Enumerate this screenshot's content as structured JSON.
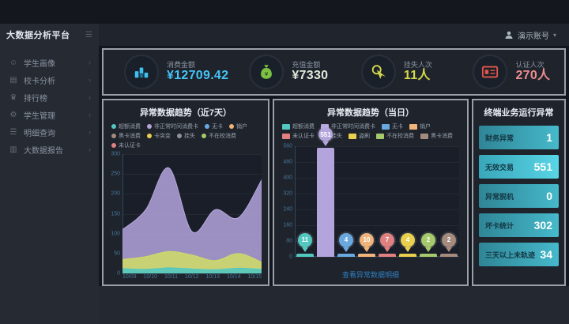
{
  "header": {
    "app_title": "大数据分析平台",
    "collapse_glyph": "☰",
    "user_name": "演示账号",
    "user_caret": "▾"
  },
  "sidebar": {
    "chevron": "›",
    "items": [
      {
        "label": "学生画像",
        "icon": "student-portrait-icon",
        "glyph": "☺"
      },
      {
        "label": "校卡分析",
        "icon": "card-analysis-icon",
        "glyph": "▤"
      },
      {
        "label": "排行榜",
        "icon": "ranking-icon",
        "glyph": "♛"
      },
      {
        "label": "学生管理",
        "icon": "student-management-icon",
        "glyph": "⚙"
      },
      {
        "label": "明细查询",
        "icon": "detail-query-icon",
        "glyph": "☰"
      },
      {
        "label": "大数据报告",
        "icon": "bigdata-report-icon",
        "glyph": "▥"
      }
    ]
  },
  "kpi_cards": [
    {
      "label": "消费金额",
      "value": "¥12709.42",
      "value_color": "#45c4f5",
      "icon": "coins-icon",
      "icon_color": "#3fc1f0"
    },
    {
      "label": "充值金额",
      "value": "¥7330",
      "value_color": "#dfe9d8",
      "icon": "money-bag-icon",
      "icon_color": "#7cc242"
    },
    {
      "label": "挂失人次",
      "value": "11人",
      "value_color": "#d3d94a",
      "icon": "hand-click-icon",
      "icon_color": "#d3d94a"
    },
    {
      "label": "认证人次",
      "value": "270人",
      "value_color": "#ee8d90",
      "icon": "id-card-icon",
      "icon_color": "#e2574c"
    }
  ],
  "chart_data": [
    {
      "type": "area",
      "title": "异常数据趋势（近7天）",
      "x": [
        "10/09",
        "10/10",
        "10/11",
        "10/12",
        "10/13",
        "10/14",
        "10/15"
      ],
      "ylim": [
        0,
        300
      ],
      "yticks": [
        0,
        50,
        100,
        150,
        200,
        250,
        300
      ],
      "grid": true,
      "legend_position": "top",
      "legend": [
        {
          "label": "超额消费",
          "color": "#53c8c0"
        },
        {
          "label": "非正常时间消费卡",
          "color": "#b3a5dc"
        },
        {
          "label": "无卡",
          "color": "#6aa9e0"
        },
        {
          "label": "销户",
          "color": "#f0b37a"
        },
        {
          "label": "黑卡消费",
          "color": "#a58a7e"
        },
        {
          "label": "卡突变",
          "color": "#e8cf4e"
        },
        {
          "label": "挂失",
          "color": "#8d9399"
        },
        {
          "label": "不在校消费",
          "color": "#a5c96b"
        },
        {
          "label": "未认证卡",
          "color": "#e08080"
        }
      ],
      "series": [
        {
          "name": "非正常时间消费卡",
          "color": "#b3a5dc",
          "values": [
            110,
            160,
            265,
            105,
            160,
            140,
            235
          ]
        },
        {
          "name": "不在校消费",
          "color": "#cdd86b",
          "values": [
            35,
            42,
            55,
            46,
            32,
            50,
            28
          ]
        },
        {
          "name": "超额消费",
          "color": "#53c8c0",
          "values": [
            12,
            10,
            14,
            11,
            9,
            13,
            10
          ]
        }
      ]
    },
    {
      "type": "bar",
      "title": "异常数据趋势（当日）",
      "ylim": [
        0,
        560
      ],
      "yticks": [
        0,
        80,
        160,
        240,
        320,
        400,
        480,
        560
      ],
      "legend": [
        {
          "label": "超额消费",
          "color": "#53c8c0"
        },
        {
          "label": "非正常时间消费卡",
          "color": "#b3a5dc"
        },
        {
          "label": "无卡",
          "color": "#6aa9e0"
        },
        {
          "label": "销户",
          "color": "#f0b37a"
        },
        {
          "label": "未认证卡",
          "color": "#e08080"
        },
        {
          "label": "挂失",
          "color": "#8d9399"
        },
        {
          "label": "盗刷",
          "color": "#e8cf4e"
        },
        {
          "label": "不在校消费",
          "color": "#a5c96b"
        },
        {
          "label": "黑卡消费",
          "color": "#a58a7e"
        }
      ],
      "categories": [
        "超额消费",
        "非正常时间消费卡",
        "无卡",
        "销户",
        "未认证卡",
        "盗刷",
        "不在校消费",
        "黑卡消费"
      ],
      "values": [
        11,
        551,
        4,
        10,
        7,
        4,
        2,
        2
      ],
      "colors": [
        "#53c8c0",
        "#b3a5dc",
        "#6aa9e0",
        "#f0b37a",
        "#e08080",
        "#e8cf4e",
        "#a5c96b",
        "#a58a7e"
      ],
      "link_text": "查看异常数据明细"
    }
  ],
  "terminal_panel": {
    "title": "终端业务运行异常",
    "rows": [
      {
        "label": "财务异常",
        "value": "1"
      },
      {
        "label": "无效交易",
        "value": "551"
      },
      {
        "label": "异常脱机",
        "value": "0"
      },
      {
        "label": "坏卡统计",
        "value": "302"
      },
      {
        "label": "三天以上未轨迹",
        "value": "34"
      }
    ]
  }
}
